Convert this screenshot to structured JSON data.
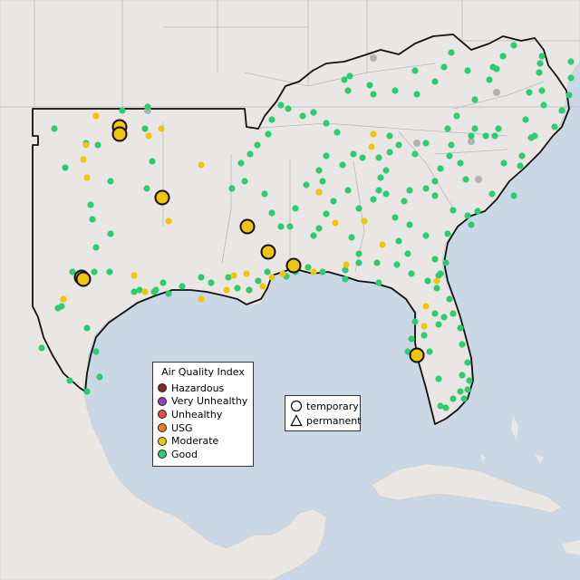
{
  "legend_aqi": {
    "title": "Air Quality Index",
    "items": [
      {
        "label": "Hazardous",
        "color": "#7e2a21"
      },
      {
        "label": "Very Unhealthy",
        "color": "#8e44ad"
      },
      {
        "label": "Unhealthy",
        "color": "#e74c3c"
      },
      {
        "label": "USG",
        "color": "#e67e22"
      },
      {
        "label": "Moderate",
        "color": "#f1c40f"
      },
      {
        "label": "Good",
        "color": "#2ecc71"
      }
    ]
  },
  "legend_shape": {
    "items": [
      {
        "label": "temporary",
        "icon": "circle-icon"
      },
      {
        "label": "permanent",
        "icon": "triangle-icon"
      }
    ]
  },
  "colors": {
    "water": "#c9d8e4",
    "land": "#e9e6e3",
    "good": "#2ecc71",
    "moderate": "#f1c40f",
    "no_data": "#b3b3b3"
  }
}
